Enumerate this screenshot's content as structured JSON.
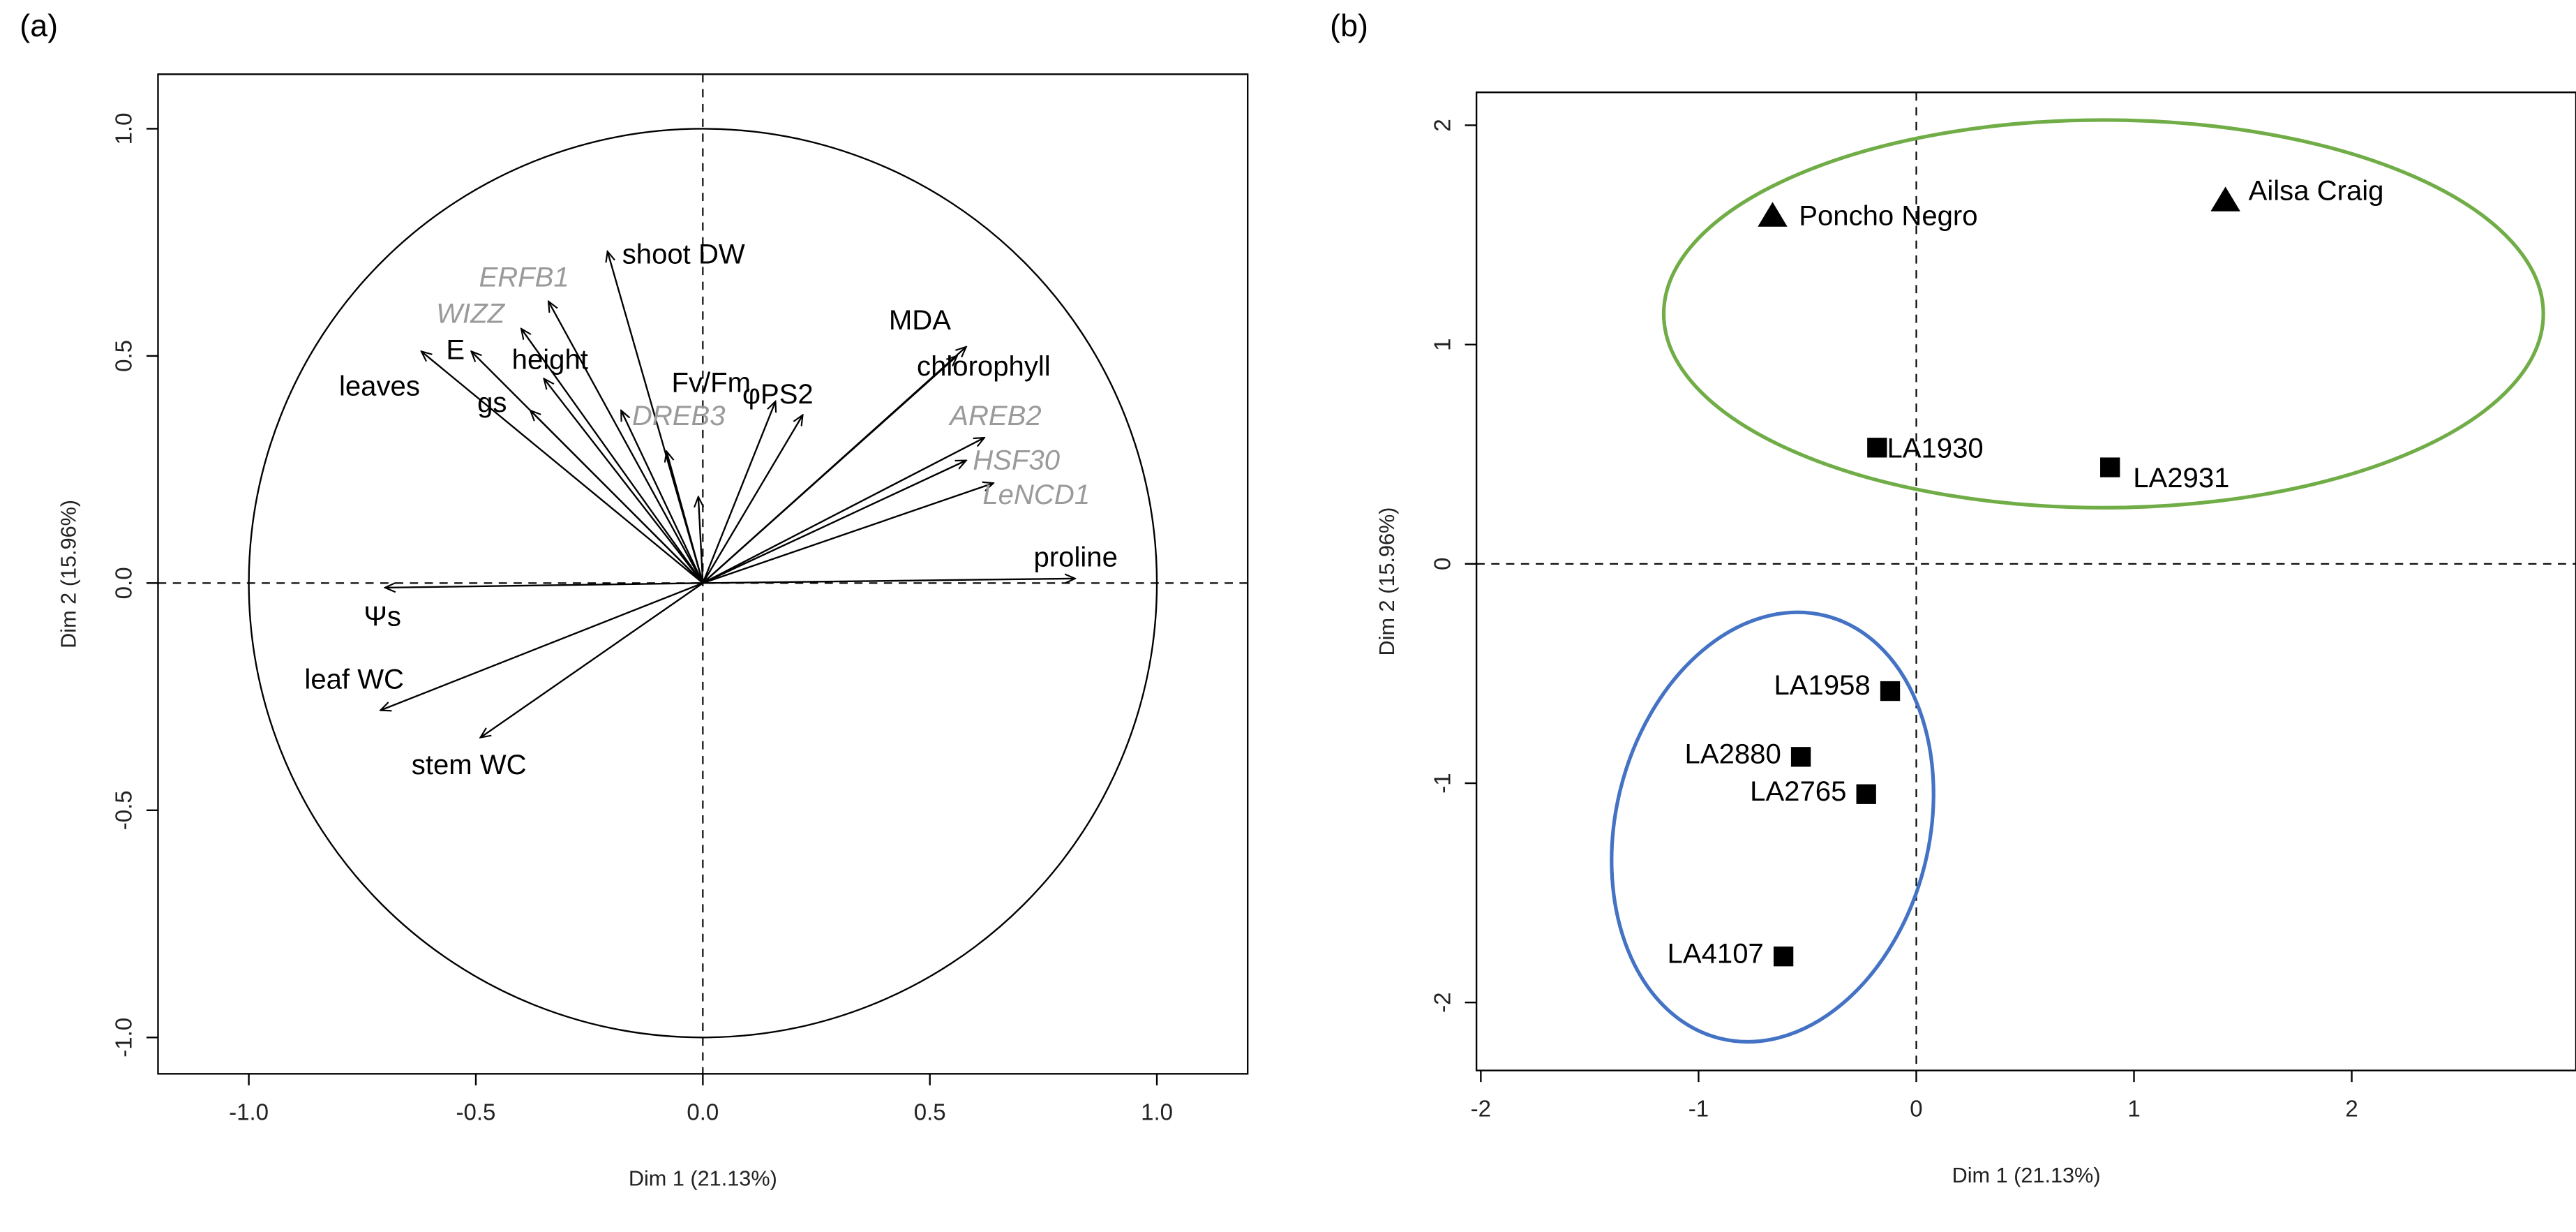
{
  "chart_data": [
    {
      "panel_label": "(a)",
      "type": "scatter",
      "subtype": "pca-variable-correlation-circle",
      "xlabel": "Dim 1 (21.13%)",
      "ylabel": "Dim 2 (15.96%)",
      "xlim": [
        -1.2,
        1.2
      ],
      "ylim": [
        -1.08,
        1.12
      ],
      "xticks": [
        "-1.0",
        "-0.5",
        "0.0",
        "0.5",
        "1.0"
      ],
      "yticks": [
        "-1.0",
        "-0.5",
        "0.0",
        "0.5",
        "1.0"
      ],
      "unit_circle": true,
      "reference_lines": {
        "x": 0,
        "y": 0,
        "style": "dashed"
      },
      "variables": [
        {
          "name": "shoot DW",
          "x": -0.21,
          "y": 0.73,
          "group": "trait"
        },
        {
          "name": "ERFB1",
          "x": -0.34,
          "y": 0.62,
          "group": "gene"
        },
        {
          "name": "WIZZ",
          "x": -0.4,
          "y": 0.56,
          "group": "gene"
        },
        {
          "name": "E",
          "x": -0.51,
          "y": 0.51,
          "group": "trait"
        },
        {
          "name": "height",
          "x": -0.35,
          "y": 0.45,
          "group": "trait"
        },
        {
          "name": "leaves",
          "x": -0.62,
          "y": 0.51,
          "group": "trait"
        },
        {
          "name": "gs",
          "x": -0.38,
          "y": 0.38,
          "group": "trait"
        },
        {
          "name": "DREB3",
          "x": -0.18,
          "y": 0.38,
          "group": "gene"
        },
        {
          "name": "Fv/Fm",
          "x": 0.16,
          "y": 0.4,
          "group": "trait"
        },
        {
          "name": "φPS2",
          "x": 0.22,
          "y": 0.37,
          "group": "trait"
        },
        {
          "name": "MDA",
          "x": 0.58,
          "y": 0.52,
          "group": "trait"
        },
        {
          "name": "chlorophyll",
          "x": 0.56,
          "y": 0.5,
          "group": "trait"
        },
        {
          "name": "AREB2",
          "x": 0.62,
          "y": 0.32,
          "group": "gene"
        },
        {
          "name": "HSF30",
          "x": 0.58,
          "y": 0.27,
          "group": "gene"
        },
        {
          "name": "LeNCD1",
          "x": 0.64,
          "y": 0.22,
          "group": "gene"
        },
        {
          "name": "proline",
          "x": 0.82,
          "y": 0.01,
          "group": "trait"
        },
        {
          "name": "Ψs",
          "x": -0.7,
          "y": -0.01,
          "group": "trait"
        },
        {
          "name": "leaf WC",
          "x": -0.71,
          "y": -0.28,
          "group": "trait"
        },
        {
          "name": "stem WC",
          "x": -0.49,
          "y": -0.34,
          "group": "trait"
        }
      ],
      "unlabeled_arrows": [
        {
          "x": -0.08,
          "y": 0.29
        },
        {
          "x": -0.01,
          "y": 0.19
        }
      ],
      "colors": {
        "trait": "#000000",
        "gene": "#9a9a9a"
      }
    },
    {
      "panel_label": "(b)",
      "type": "scatter",
      "subtype": "pca-individuals",
      "xlabel": "Dim 1 (21.13%)",
      "ylabel": "Dim 2 (15.96%)",
      "xlim": [
        -2.02,
        3.03
      ],
      "ylim": [
        -2.31,
        2.15
      ],
      "xticks": [
        "-2",
        "-1",
        "0",
        "1",
        "2"
      ],
      "yticks": [
        "-2",
        "-1",
        "0",
        "1",
        "2"
      ],
      "reference_lines": {
        "x": 0,
        "y": 0,
        "style": "dashed"
      },
      "points": [
        {
          "name": "Poncho Negro",
          "x": -0.66,
          "y": 1.59,
          "marker": "triangle"
        },
        {
          "name": "Ailsa Craig",
          "x": 1.42,
          "y": 1.66,
          "marker": "triangle"
        },
        {
          "name": "LA1930",
          "x": -0.18,
          "y": 0.53,
          "marker": "square"
        },
        {
          "name": "LA2931",
          "x": 0.89,
          "y": 0.44,
          "marker": "square"
        },
        {
          "name": "LA1958",
          "x": -0.12,
          "y": -0.58,
          "marker": "square"
        },
        {
          "name": "LA2880",
          "x": -0.53,
          "y": -0.88,
          "marker": "square"
        },
        {
          "name": "LA2765",
          "x": -0.23,
          "y": -1.05,
          "marker": "square"
        },
        {
          "name": "LA4107",
          "x": -0.61,
          "y": -1.79,
          "marker": "square"
        }
      ],
      "ellipses": [
        {
          "name": "cluster-upper",
          "cx": 0.86,
          "cy": 1.14,
          "rx": 2.02,
          "ry": 0.89,
          "angle_deg": 0,
          "color": "#70ad47"
        },
        {
          "name": "cluster-lower",
          "cx": -0.66,
          "cy": -1.2,
          "rx": 0.72,
          "ry": 1.0,
          "angle_deg": 14,
          "color": "#4472c4"
        }
      ]
    }
  ]
}
